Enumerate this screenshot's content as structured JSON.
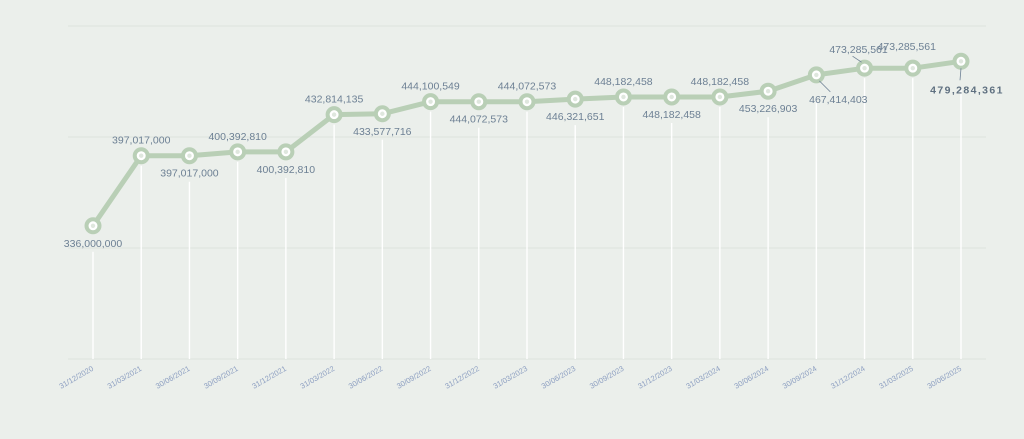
{
  "chart_data": {
    "type": "line",
    "title": "",
    "xlabel": "",
    "ylabel": "",
    "categories": [
      "31/12/2020",
      "31/03/2021",
      "30/06/2021",
      "30/09/2021",
      "31/12/2021",
      "31/03/2022",
      "30/06/2022",
      "30/09/2022",
      "31/12/2022",
      "31/03/2023",
      "30/06/2023",
      "30/09/2023",
      "31/12/2023",
      "31/03/2024",
      "30/06/2024",
      "30/09/2024",
      "31/12/2024",
      "31/03/2025",
      "30/06/2025"
    ],
    "series": [
      {
        "name": "",
        "values": [
          336000000,
          397017000,
          397017000,
          400392810,
          400392810,
          432814135,
          433577716,
          444100549,
          444072573,
          444072573,
          446321651,
          448182458,
          448182458,
          448182458,
          453226903,
          467414403,
          473285561,
          473285561,
          479284361
        ],
        "labels": [
          "336,000,000",
          "397,017,000",
          "397,017,000",
          "400,392,810",
          "400,392,810",
          "432,814,135",
          "433,577,716",
          "444,100,549",
          "444,072,573",
          "444,072,573",
          "446,321,651",
          "448,182,458",
          "448,182,458",
          "448,182,458",
          "453,226,903",
          "467,414,403",
          "473,285,561",
          "473,285,561",
          "479,284,361"
        ],
        "label_side": [
          "below",
          "above",
          "below",
          "above",
          "below",
          "above",
          "below",
          "above",
          "below",
          "above",
          "below",
          "above",
          "below",
          "above",
          "below",
          "below",
          "above",
          "above",
          "below"
        ]
      }
    ],
    "ylim": [
      220000000,
      510000000
    ],
    "grid": true,
    "legend": "none"
  },
  "colors": {
    "background": "#ebefeb",
    "line": "#b9cfb6",
    "label": "#6d8094",
    "tick": "#8ea0c2"
  }
}
